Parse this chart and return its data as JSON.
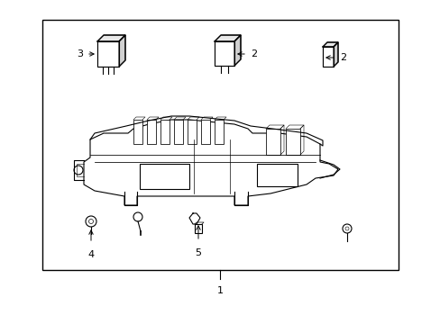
{
  "bg_color": "#ffffff",
  "line_color": "#000000",
  "text_color": "#000000",
  "fig_width": 4.89,
  "fig_height": 3.6,
  "dpi": 100,
  "label_fontsize": 8
}
